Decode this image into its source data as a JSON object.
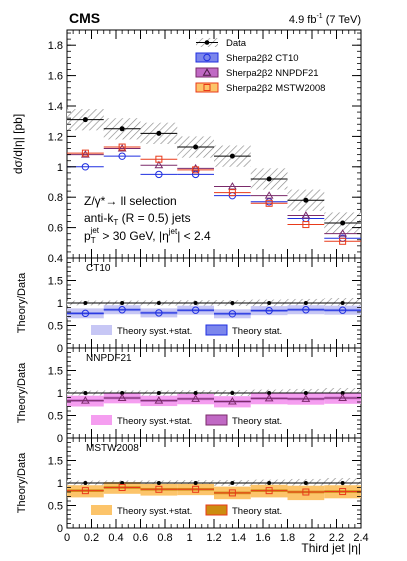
{
  "chart_data": {
    "type": "line",
    "header": {
      "experiment": "CMS",
      "lumi_value": "4.9 fb",
      "lumi_exp": "-1",
      "lumi_energy": " (7 TeV)"
    },
    "x_axis": {
      "label": "Third jet |η|",
      "range": [
        0,
        2.4
      ],
      "bin_edges": [
        0,
        0.3,
        0.6,
        0.9,
        1.2,
        1.5,
        1.8,
        2.1,
        2.4
      ],
      "ticks": [
        "0",
        "0.2",
        "0.4",
        "0.6",
        "0.8",
        "1",
        "1.2",
        "1.4",
        "1.6",
        "1.8",
        "2",
        "2.2",
        "2.4"
      ]
    },
    "main_panel": {
      "ylabel": "dσ/d|η| [pb]",
      "ylim": [
        0.4,
        1.9
      ],
      "yticks": [
        "0.4",
        "0.6",
        "0.8",
        "1",
        "1.2",
        "1.4",
        "1.6",
        "1.8"
      ],
      "selection_text": {
        "line1": "Z/γ*→ ll selection",
        "line2_a": "anti-k",
        "line2_sub": "T",
        "line2_b": " (R = 0.5) jets",
        "line3_a": "p",
        "line3_sub": "T",
        "line3_sup": "jet",
        "line3_b": " > 30 GeV, |η",
        "line3_sup2": "jet",
        "line3_c": "| < 2.4"
      },
      "series": [
        {
          "name": "Data",
          "marker": "dot",
          "color": "#000000",
          "values": [
            1.31,
            1.25,
            1.22,
            1.13,
            1.07,
            0.92,
            0.78,
            0.63
          ],
          "band": [
            [
              1.24,
              1.38
            ],
            [
              1.18,
              1.32
            ],
            [
              1.15,
              1.29
            ],
            [
              1.06,
              1.2
            ],
            [
              1.0,
              1.14
            ],
            [
              0.85,
              0.99
            ],
            [
              0.71,
              0.85
            ],
            [
              0.56,
              0.7
            ]
          ]
        },
        {
          "name": "Sherpa2β2 CT10",
          "marker": "circle",
          "color": "#1f2fe0",
          "values": [
            1.0,
            1.07,
            0.95,
            0.95,
            0.81,
            0.77,
            0.66,
            0.53
          ]
        },
        {
          "name": "Sherpa2β2 NNPDF21",
          "marker": "triangle",
          "color": "#7a2a6a",
          "values": [
            1.08,
            1.12,
            1.01,
            0.99,
            0.87,
            0.81,
            0.68,
            0.56
          ]
        },
        {
          "name": "Sherpa2β2 MSTW2008",
          "marker": "square",
          "color": "#e83a1a",
          "values": [
            1.09,
            1.13,
            1.05,
            0.98,
            0.83,
            0.76,
            0.62,
            0.51
          ]
        }
      ]
    },
    "ratio_panels": [
      {
        "title": "CT10",
        "ylabel": "Theory/Data",
        "ylim": [
          0,
          2.0
        ],
        "yticks": [
          "0",
          "0.5",
          "1",
          "1.5"
        ],
        "marker": "circle",
        "marker_color": "#1f2fe0",
        "values": [
          0.77,
          0.85,
          0.78,
          0.84,
          0.76,
          0.83,
          0.85,
          0.84
        ],
        "syst_band": [
          [
            0.66,
            0.88
          ],
          [
            0.75,
            0.95
          ],
          [
            0.68,
            0.88
          ],
          [
            0.74,
            0.94
          ],
          [
            0.66,
            0.86
          ],
          [
            0.73,
            0.93
          ],
          [
            0.75,
            0.95
          ],
          [
            0.74,
            0.94
          ]
        ],
        "stat_band": [
          [
            0.74,
            0.8
          ],
          [
            0.82,
            0.88
          ],
          [
            0.75,
            0.81
          ],
          [
            0.81,
            0.87
          ],
          [
            0.73,
            0.79
          ],
          [
            0.8,
            0.86
          ],
          [
            0.82,
            0.88
          ],
          [
            0.81,
            0.87
          ]
        ],
        "legend_syst": "Theory syst.+stat.",
        "legend_stat": "Theory stat.",
        "syst_color": "#c7c7f5",
        "stat_color": "#7b86ec",
        "stat_edge": "#1f2fe0"
      },
      {
        "title": "NNPDF21",
        "ylabel": "Theory/Data",
        "ylim": [
          0,
          2.0
        ],
        "yticks": [
          "0",
          "0.5",
          "1",
          "1.5"
        ],
        "marker": "triangle",
        "marker_color": "#7a2a6a",
        "values": [
          0.83,
          0.89,
          0.83,
          0.87,
          0.81,
          0.88,
          0.87,
          0.89
        ],
        "syst_band": [
          [
            0.7,
            0.94
          ],
          [
            0.77,
            1.0
          ],
          [
            0.71,
            0.94
          ],
          [
            0.75,
            0.98
          ],
          [
            0.68,
            0.93
          ],
          [
            0.75,
            0.99
          ],
          [
            0.74,
            0.99
          ],
          [
            0.76,
            1.01
          ]
        ],
        "stat_band": [
          [
            0.8,
            0.86
          ],
          [
            0.86,
            0.92
          ],
          [
            0.8,
            0.86
          ],
          [
            0.84,
            0.9
          ],
          [
            0.78,
            0.84
          ],
          [
            0.85,
            0.91
          ],
          [
            0.84,
            0.9
          ],
          [
            0.86,
            0.92
          ]
        ],
        "legend_syst": "Theory syst.+stat.",
        "legend_stat": "Theory stat.",
        "syst_color": "#f59ef0",
        "stat_color": "#c069c4",
        "stat_edge": "#7a2a6a"
      },
      {
        "title": "MSTW2008",
        "ylabel": "Theory/Data",
        "ylim": [
          0,
          2.0
        ],
        "yticks": [
          "0",
          "0.5",
          "1",
          "1.5"
        ],
        "marker": "square",
        "marker_color": "#e83a1a",
        "values": [
          0.83,
          0.9,
          0.86,
          0.86,
          0.78,
          0.83,
          0.8,
          0.81
        ],
        "syst_band": [
          [
            0.68,
            0.95
          ],
          [
            0.76,
            1.02
          ],
          [
            0.72,
            0.98
          ],
          [
            0.73,
            0.98
          ],
          [
            0.64,
            0.92
          ],
          [
            0.68,
            0.96
          ],
          [
            0.62,
            0.94
          ],
          [
            0.66,
            0.95
          ]
        ],
        "stat_band": [
          [
            0.8,
            0.86
          ],
          [
            0.87,
            0.93
          ],
          [
            0.83,
            0.89
          ],
          [
            0.83,
            0.89
          ],
          [
            0.75,
            0.81
          ],
          [
            0.8,
            0.86
          ],
          [
            0.77,
            0.83
          ],
          [
            0.78,
            0.84
          ]
        ],
        "legend_syst": "Theory syst.+stat.",
        "legend_stat": "Theory stat.",
        "syst_color": "#fcc46a",
        "stat_color": "#cc8c10",
        "stat_edge": "#e83a1a"
      }
    ],
    "legend_placement": "top-right",
    "grid": false
  }
}
